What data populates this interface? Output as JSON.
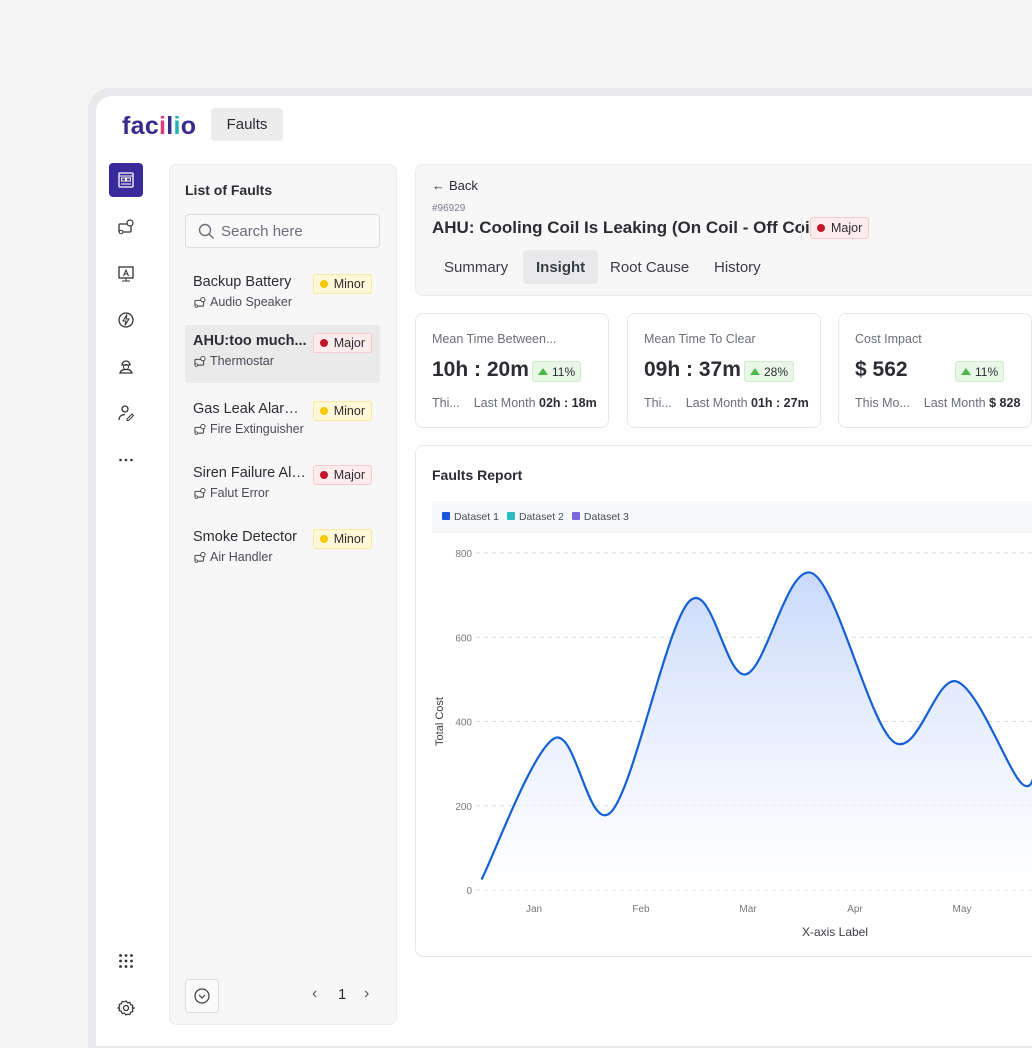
{
  "app": {
    "logo": "facilio",
    "top_tab": "Faults"
  },
  "sidebar": {
    "items": [
      {
        "icon": "dashboard-icon",
        "active": true
      },
      {
        "icon": "asset-icon"
      },
      {
        "icon": "monitor-user-icon"
      },
      {
        "icon": "energy-icon"
      },
      {
        "icon": "technician-icon"
      },
      {
        "icon": "user-edit-icon"
      },
      {
        "icon": "more-icon"
      }
    ],
    "bottom": [
      {
        "icon": "apps-grid-icon"
      },
      {
        "icon": "settings-icon"
      }
    ]
  },
  "list": {
    "title": "List of Faults",
    "search_placeholder": "Search here",
    "items": [
      {
        "title": "Backup Battery",
        "asset": "Audio Speaker",
        "severity": "Minor"
      },
      {
        "title": "AHU:too much...",
        "asset": "Thermostar",
        "severity": "Major",
        "selected": true
      },
      {
        "title": "Gas Leak Alarm...",
        "asset": "Fire Extinguisher",
        "severity": "Minor"
      },
      {
        "title": "Siren Failure Ala...",
        "asset": "Falut Error",
        "severity": "Major"
      },
      {
        "title": "Smoke Detector",
        "asset": "Air Handler",
        "severity": "Minor"
      }
    ],
    "page": "1",
    "prev": "‹",
    "next": "›"
  },
  "detail": {
    "back": "Back",
    "id": "#96929",
    "title": "AHU: Cooling Coil Is Leaking (On Coil - Off Coil)",
    "severity": "Major",
    "tabs": [
      {
        "label": "Summary"
      },
      {
        "label": "Insight",
        "active": true
      },
      {
        "label": "Root Cause"
      },
      {
        "label": "History"
      }
    ]
  },
  "kpis": [
    {
      "label": "Mean Time Between...",
      "value": "10h : 20m",
      "change": "11%",
      "this": "Thi...",
      "last_label": "Last Month",
      "last_value": "02h : 18m"
    },
    {
      "label": "Mean Time To Clear",
      "value": "09h : 37m",
      "change": "28%",
      "this": "Thi...",
      "last_label": "Last Month",
      "last_value": "01h : 27m"
    },
    {
      "label": "Cost Impact",
      "value": "$ 562",
      "change": "11%",
      "this": "This Mo...",
      "last_label": "Last Month",
      "last_value": "$ 828"
    }
  ],
  "colors": {
    "brand": "#3b2a9c",
    "major": "#c0182a",
    "minor": "#f5c800",
    "up": "#4cb84a",
    "line": "#1560d4"
  },
  "chart_title": "Faults Report",
  "chart_data": {
    "type": "area",
    "title": "Faults Report",
    "xlabel": "X-axis Label",
    "ylabel": "Total Cost",
    "categories": [
      "Jan",
      "Feb",
      "Mar",
      "Apr",
      "May"
    ],
    "ylim": [
      0,
      800
    ],
    "yticks": [
      0,
      200,
      400,
      600,
      800
    ],
    "grid": true,
    "legend_position": "top-left",
    "legend": [
      {
        "name": "Dataset 1",
        "color": "#1a56db"
      },
      {
        "name": "Dataset 2",
        "color": "#2bbcc0"
      },
      {
        "name": "Dataset 3",
        "color": "#7b68e0"
      }
    ],
    "series": [
      {
        "name": "Dataset 1",
        "points": [
          [
            -0.49,
            25
          ],
          [
            0.19,
            360
          ],
          [
            0.72,
            185
          ],
          [
            1.45,
            685
          ],
          [
            1.98,
            512
          ],
          [
            2.6,
            752
          ],
          [
            3.36,
            352
          ],
          [
            3.95,
            495
          ],
          [
            4.55,
            255
          ],
          [
            4.7,
            300
          ]
        ]
      }
    ]
  }
}
